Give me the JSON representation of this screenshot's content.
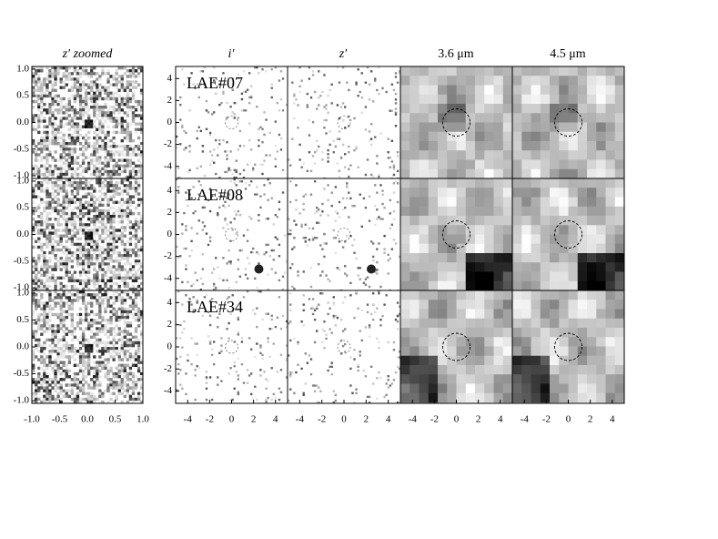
{
  "columns": [
    {
      "title": "z′ zoomed"
    },
    {
      "title": "i′"
    },
    {
      "title": "z′"
    },
    {
      "title": "3.6 μm"
    },
    {
      "title": "4.5 μm"
    }
  ],
  "rows": [
    {
      "label": "LAE#07"
    },
    {
      "label": "LAE#08"
    },
    {
      "label": "LAE#34"
    }
  ],
  "zoomed_axes": {
    "xlim": [
      -1,
      1
    ],
    "ylim": [
      -1.05,
      1.05
    ],
    "xticks": [
      {
        "value": -1,
        "label": "-1.0"
      },
      {
        "value": -0.5,
        "label": "-0.5"
      },
      {
        "value": 0,
        "label": "0.0"
      },
      {
        "value": 0.5,
        "label": "0.5"
      },
      {
        "value": 1,
        "label": "1.0"
      }
    ],
    "yticks": [
      {
        "value": 1,
        "label": "1.0"
      },
      {
        "value": 0.5,
        "label": "0.5"
      },
      {
        "value": 0,
        "label": "0.0"
      },
      {
        "value": -0.5,
        "label": "-0.5"
      },
      {
        "value": -1,
        "label": "-1.0"
      }
    ]
  },
  "stamp_axes": {
    "xlim": [
      -5.1,
      5.1
    ],
    "ylim": [
      -5.1,
      5.1
    ],
    "xticks": [
      -4,
      -2,
      0,
      2,
      4
    ],
    "yticks": [
      -4,
      -2,
      0,
      2,
      4
    ]
  }
}
